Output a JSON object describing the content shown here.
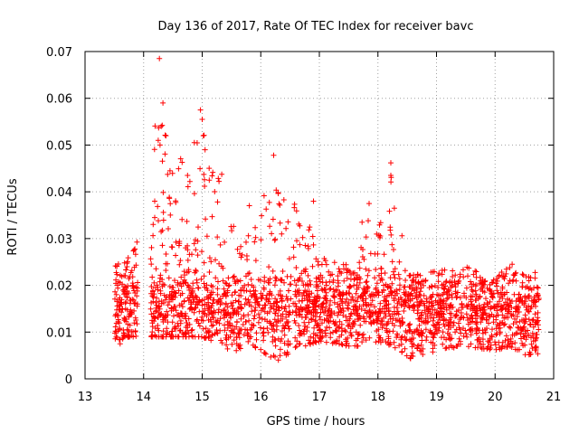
{
  "chart_data": {
    "type": "scatter",
    "title": "Day 136 of 2017, Rate Of TEC Index for receiver bavc",
    "xlabel": "GPS time / hours",
    "ylabel": "ROTI / TECUs",
    "xlim": [
      13,
      21
    ],
    "ylim": [
      0,
      0.07
    ],
    "xticks": [
      "13",
      "14",
      "15",
      "16",
      "17",
      "18",
      "19",
      "20",
      "21"
    ],
    "yticks": [
      "0",
      "0.01",
      "0.02",
      "0.03",
      "0.04",
      "0.05",
      "0.06",
      "0.07"
    ],
    "grid": true,
    "marker": "+",
    "color": "#ff0000",
    "x_range_observed": [
      13.45,
      20.75
    ],
    "notable_points": [
      {
        "x": 14.27,
        "y": 0.0685
      },
      {
        "x": 14.33,
        "y": 0.059
      },
      {
        "x": 14.3,
        "y": 0.054
      },
      {
        "x": 14.38,
        "y": 0.052
      },
      {
        "x": 14.28,
        "y": 0.05
      },
      {
        "x": 14.97,
        "y": 0.0575
      },
      {
        "x": 15.0,
        "y": 0.0555
      },
      {
        "x": 15.02,
        "y": 0.052
      },
      {
        "x": 15.05,
        "y": 0.049
      },
      {
        "x": 16.22,
        "y": 0.0478
      },
      {
        "x": 18.22,
        "y": 0.0462
      },
      {
        "x": 18.22,
        "y": 0.0435
      },
      {
        "x": 14.45,
        "y": 0.0445
      },
      {
        "x": 14.75,
        "y": 0.0435
      },
      {
        "x": 15.12,
        "y": 0.0425
      },
      {
        "x": 16.9,
        "y": 0.038
      },
      {
        "x": 17.85,
        "y": 0.0375
      },
      {
        "x": 18.28,
        "y": 0.0365
      },
      {
        "x": 16.3,
        "y": 0.004
      },
      {
        "x": 18.55,
        "y": 0.0045
      },
      {
        "x": 13.6,
        "y": 0.0075
      }
    ],
    "envelope": [
      {
        "x": 13.5,
        "low": 0.008,
        "high": 0.024
      },
      {
        "x": 13.75,
        "low": 0.009,
        "high": 0.026
      },
      {
        "x": 14.25,
        "low": 0.009,
        "high": 0.06
      },
      {
        "x": 14.5,
        "low": 0.009,
        "high": 0.045
      },
      {
        "x": 15.0,
        "low": 0.009,
        "high": 0.057
      },
      {
        "x": 15.5,
        "low": 0.006,
        "high": 0.04
      },
      {
        "x": 16.0,
        "low": 0.006,
        "high": 0.038
      },
      {
        "x": 16.25,
        "low": 0.004,
        "high": 0.047
      },
      {
        "x": 16.75,
        "low": 0.007,
        "high": 0.034
      },
      {
        "x": 17.0,
        "low": 0.008,
        "high": 0.03
      },
      {
        "x": 17.5,
        "low": 0.007,
        "high": 0.026
      },
      {
        "x": 17.75,
        "low": 0.007,
        "high": 0.036
      },
      {
        "x": 18.0,
        "low": 0.008,
        "high": 0.033
      },
      {
        "x": 18.25,
        "low": 0.007,
        "high": 0.046
      },
      {
        "x": 18.5,
        "low": 0.004,
        "high": 0.022
      },
      {
        "x": 19.0,
        "low": 0.006,
        "high": 0.023
      },
      {
        "x": 19.5,
        "low": 0.007,
        "high": 0.024
      },
      {
        "x": 20.0,
        "low": 0.006,
        "high": 0.021
      },
      {
        "x": 20.25,
        "low": 0.007,
        "high": 0.025
      },
      {
        "x": 20.5,
        "low": 0.005,
        "high": 0.022
      },
      {
        "x": 20.75,
        "low": 0.005,
        "high": 0.023
      }
    ]
  }
}
